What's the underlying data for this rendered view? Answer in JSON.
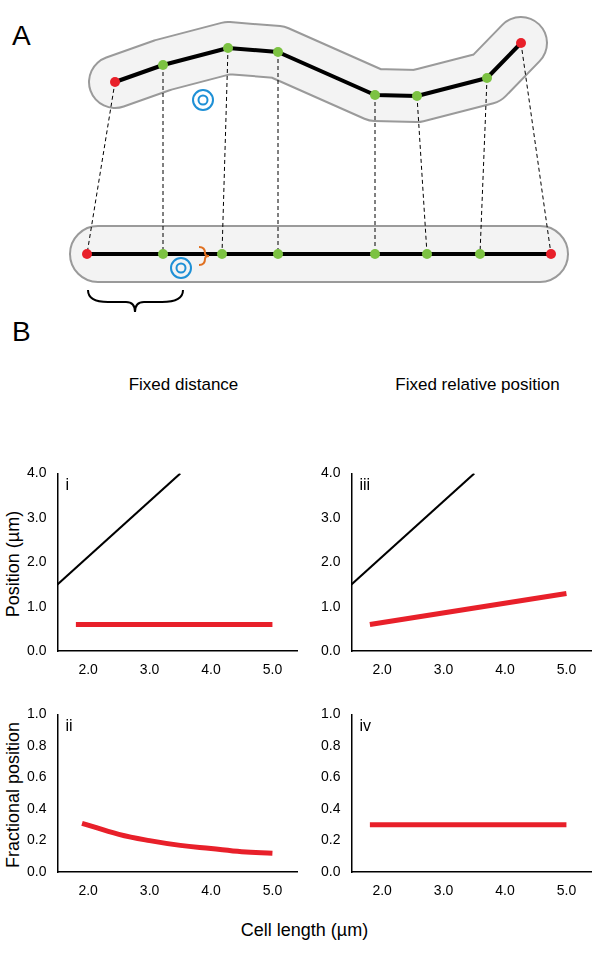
{
  "figure": {
    "panel_labels": [
      "A",
      "B"
    ],
    "column_titles": [
      "Fixed distance",
      "Fixed relative position"
    ],
    "x_label": "Cell length (µm)",
    "y_labels": [
      "Position (µm)",
      "Fractional position"
    ]
  },
  "chart_data": [
    {
      "type": "line",
      "title": "i",
      "grid": false,
      "xlim": [
        1.5,
        5.4
      ],
      "xticks": [
        {
          "value": 2,
          "label": "2.0"
        },
        {
          "value": 3,
          "label": "3.0"
        },
        {
          "value": 4,
          "label": "4.0"
        },
        {
          "value": 5,
          "label": "5.0"
        }
      ],
      "ylim": [
        0,
        4
      ],
      "yticks": [
        {
          "value": 0,
          "label": "0.0"
        },
        {
          "value": 1,
          "label": "1.0"
        },
        {
          "value": 2,
          "label": "2.0"
        },
        {
          "value": 3,
          "label": "3.0"
        },
        {
          "value": 4,
          "label": "4.0"
        }
      ],
      "series": [
        {
          "color": "#000000",
          "line_style": "solid",
          "marker": "none",
          "x": [
            1.5,
            3.5
          ],
          "values": [
            1.5,
            4.0
          ]
        },
        {
          "color": "#e8202a",
          "line_style": "solid",
          "marker": "none",
          "x": [
            1.8,
            5.0
          ],
          "values": [
            0.6,
            0.6
          ]
        }
      ]
    },
    {
      "type": "line",
      "title": "ii",
      "grid": false,
      "xlim": [
        1.5,
        5.4
      ],
      "xticks": [
        {
          "value": 2,
          "label": "2.0"
        },
        {
          "value": 3,
          "label": "3.0"
        },
        {
          "value": 4,
          "label": "4.0"
        },
        {
          "value": 5,
          "label": "5.0"
        }
      ],
      "ylim": [
        0,
        1
      ],
      "yticks": [
        {
          "value": 0,
          "label": "0.0"
        },
        0.2,
        0.4,
        0.6,
        0.8,
        {
          "value": 1,
          "label": "1.0"
        }
      ],
      "series": [
        {
          "color": "#e8202a",
          "line_style": "solid",
          "marker": "none",
          "x": [
            1.9,
            2.5,
            3.0,
            3.5,
            4.0,
            4.5,
            5.0
          ],
          "values": [
            0.31,
            0.24,
            0.2,
            0.17,
            0.15,
            0.13,
            0.12
          ]
        }
      ]
    },
    {
      "type": "line",
      "title": "iii",
      "grid": false,
      "xlim": [
        1.5,
        5.4
      ],
      "xticks": [
        {
          "value": 2,
          "label": "2.0"
        },
        {
          "value": 3,
          "label": "3.0"
        },
        {
          "value": 4,
          "label": "4.0"
        },
        {
          "value": 5,
          "label": "5.0"
        }
      ],
      "ylim": [
        0,
        4
      ],
      "yticks": [
        {
          "value": 0,
          "label": "0.0"
        },
        {
          "value": 1,
          "label": "1.0"
        },
        {
          "value": 2,
          "label": "2.0"
        },
        {
          "value": 3,
          "label": "3.0"
        },
        {
          "value": 4,
          "label": "4.0"
        }
      ],
      "series": [
        {
          "color": "#000000",
          "line_style": "solid",
          "marker": "none",
          "x": [
            1.5,
            3.5
          ],
          "values": [
            1.5,
            4.0
          ]
        },
        {
          "color": "#e8202a",
          "line_style": "solid",
          "marker": "none",
          "x": [
            1.8,
            5.0
          ],
          "values": [
            0.6,
            1.3
          ]
        }
      ]
    },
    {
      "type": "line",
      "title": "iv",
      "grid": false,
      "xlim": [
        1.5,
        5.4
      ],
      "xticks": [
        {
          "value": 2,
          "label": "2.0"
        },
        {
          "value": 3,
          "label": "3.0"
        },
        {
          "value": 4,
          "label": "4.0"
        },
        {
          "value": 5,
          "label": "5.0"
        }
      ],
      "ylim": [
        0,
        1
      ],
      "yticks": [
        {
          "value": 0,
          "label": "0.0"
        },
        0.2,
        0.4,
        0.6,
        0.8,
        {
          "value": 1,
          "label": "1.0"
        }
      ],
      "series": [
        {
          "color": "#e8202a",
          "line_style": "solid",
          "marker": "none",
          "x": [
            1.8,
            5.0
          ],
          "values": [
            0.3,
            0.3
          ]
        }
      ]
    }
  ]
}
